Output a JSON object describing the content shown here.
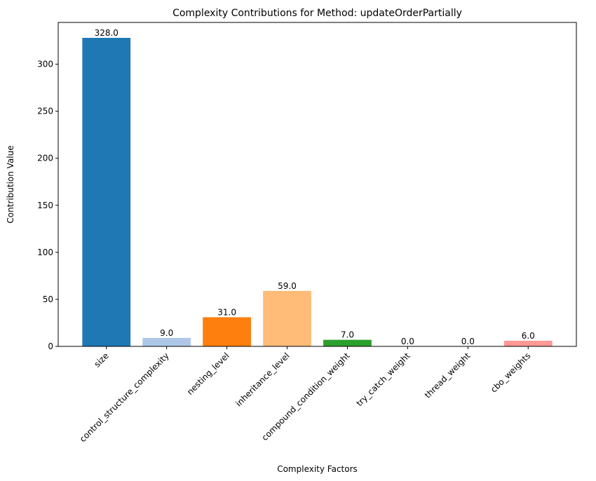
{
  "chart_data": {
    "type": "bar",
    "title": "Complexity Contributions for Method: updateOrderPartially",
    "xlabel": "Complexity Factors",
    "ylabel": "Contribution Value",
    "categories": [
      "size",
      "control_structure_complexity",
      "nesting_level",
      "inheritance_level",
      "compound_condition_weight",
      "try_catch_weight",
      "thread_weight",
      "cbo_weights"
    ],
    "values": [
      328.0,
      9.0,
      31.0,
      59.0,
      7.0,
      0.0,
      0.0,
      6.0
    ],
    "value_labels": [
      "328.0",
      "9.0",
      "31.0",
      "59.0",
      "7.0",
      "0.0",
      "0.0",
      "6.0"
    ],
    "colors": [
      "#1f77b4",
      "#aec7e8",
      "#ff7f0e",
      "#ffbb78",
      "#2ca02c",
      "#98df8a",
      "#d62728",
      "#ff9896"
    ],
    "ylim": [
      0,
      344.4
    ],
    "yticks": [
      0,
      50,
      100,
      150,
      200,
      250,
      300
    ],
    "grid": false,
    "legend": "none"
  }
}
